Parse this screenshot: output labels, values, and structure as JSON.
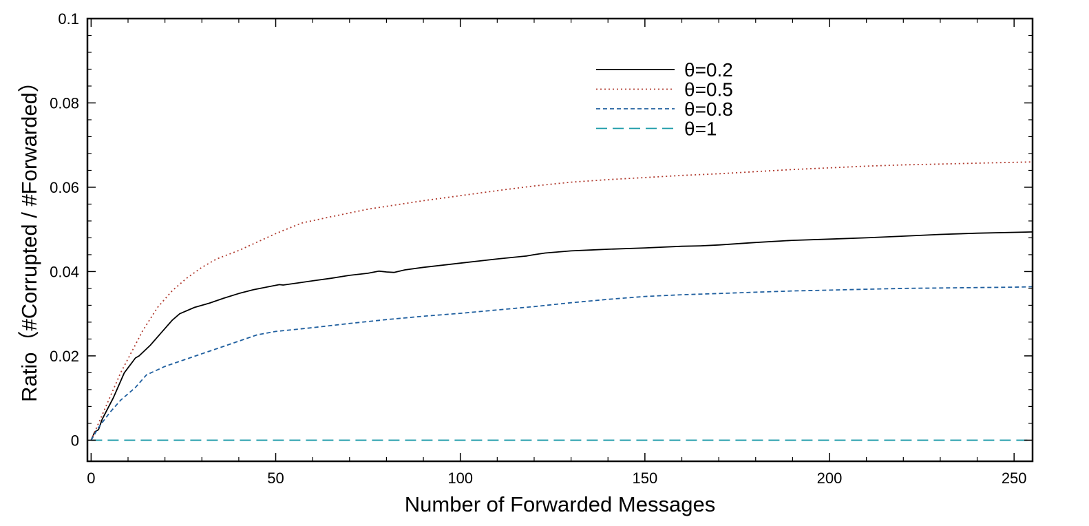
{
  "chart_data": {
    "type": "line",
    "title": "",
    "xlabel": "Number of Forwarded Messages",
    "ylabel": "Ratio（#Corrupted / #Forwarded）",
    "xlim": [
      -1,
      255
    ],
    "ylim": [
      -0.005,
      0.1
    ],
    "xticks": [
      0,
      50,
      100,
      150,
      200,
      250
    ],
    "xtick_labels": [
      "0",
      "50",
      "100",
      "150",
      "200",
      "250"
    ],
    "yticks": [
      0,
      0.02,
      0.04,
      0.06,
      0.08,
      0.1
    ],
    "ytick_labels": [
      "0",
      "0.02",
      "0.04",
      "0.06",
      "0.08",
      "0.1"
    ],
    "grid": false,
    "legend_position": "top-center",
    "series": [
      {
        "name": "θ=0.2",
        "color": "#000000",
        "dash": "solid",
        "x": [
          0,
          1,
          2,
          3,
          6,
          9,
          12,
          13,
          16,
          19,
          22,
          24,
          28,
          32,
          36,
          40,
          44,
          48,
          51,
          52,
          56,
          60,
          65,
          70,
          75,
          78,
          80,
          82,
          85,
          90,
          100,
          110,
          118,
          120,
          123,
          130,
          135,
          140,
          150,
          160,
          165,
          170,
          180,
          190,
          200,
          210,
          220,
          230,
          240,
          250,
          255
        ],
        "y": [
          0,
          0.002,
          0.0025,
          0.005,
          0.01,
          0.016,
          0.0195,
          0.02,
          0.0225,
          0.0255,
          0.0285,
          0.03,
          0.0315,
          0.0325,
          0.0337,
          0.0348,
          0.0357,
          0.0364,
          0.0369,
          0.0368,
          0.0373,
          0.0378,
          0.0384,
          0.0391,
          0.0396,
          0.0401,
          0.0399,
          0.0398,
          0.0404,
          0.041,
          0.042,
          0.043,
          0.0437,
          0.044,
          0.0444,
          0.0449,
          0.0451,
          0.0453,
          0.0456,
          0.046,
          0.0461,
          0.0463,
          0.0469,
          0.0474,
          0.0477,
          0.048,
          0.0484,
          0.0488,
          0.0491,
          0.0493,
          0.0494
        ]
      },
      {
        "name": "θ=0.5",
        "color": "#b03a2e",
        "dash": "dotted",
        "x": [
          0,
          2,
          5,
          8,
          11,
          14,
          18,
          22,
          26,
          30,
          34,
          40,
          45,
          50,
          57,
          65,
          75,
          90,
          100,
          110,
          120,
          130,
          140,
          150,
          160,
          170,
          180,
          190,
          200,
          210,
          220,
          230,
          240,
          250,
          255
        ],
        "y": [
          0,
          0.004,
          0.01,
          0.016,
          0.021,
          0.026,
          0.0315,
          0.0355,
          0.0385,
          0.041,
          0.043,
          0.045,
          0.047,
          0.049,
          0.0515,
          0.053,
          0.0548,
          0.0568,
          0.058,
          0.0592,
          0.0603,
          0.0612,
          0.0618,
          0.0623,
          0.0628,
          0.0632,
          0.0637,
          0.0642,
          0.0646,
          0.065,
          0.0653,
          0.0655,
          0.0657,
          0.0659,
          0.066
        ]
      },
      {
        "name": "θ=0.8",
        "color": "#1f5f9f",
        "dash": "dashed",
        "x": [
          0,
          2,
          5,
          8,
          12,
          15,
          20,
          25,
          30,
          35,
          40,
          45,
          50,
          60,
          70,
          80,
          90,
          100,
          110,
          120,
          130,
          140,
          150,
          160,
          170,
          180,
          190,
          200,
          210,
          220,
          230,
          240,
          250,
          255
        ],
        "y": [
          0,
          0.003,
          0.0065,
          0.0095,
          0.0125,
          0.0155,
          0.0175,
          0.019,
          0.0205,
          0.022,
          0.0235,
          0.025,
          0.0258,
          0.0267,
          0.0277,
          0.0286,
          0.0294,
          0.0301,
          0.0309,
          0.0317,
          0.0326,
          0.0334,
          0.0341,
          0.0345,
          0.0348,
          0.0351,
          0.0354,
          0.0356,
          0.0358,
          0.036,
          0.0361,
          0.0362,
          0.0363,
          0.0364
        ]
      },
      {
        "name": "θ=1",
        "color": "#1a9aa8",
        "dash": "longdash",
        "x": [
          0,
          255
        ],
        "y": [
          0,
          0
        ]
      }
    ]
  }
}
